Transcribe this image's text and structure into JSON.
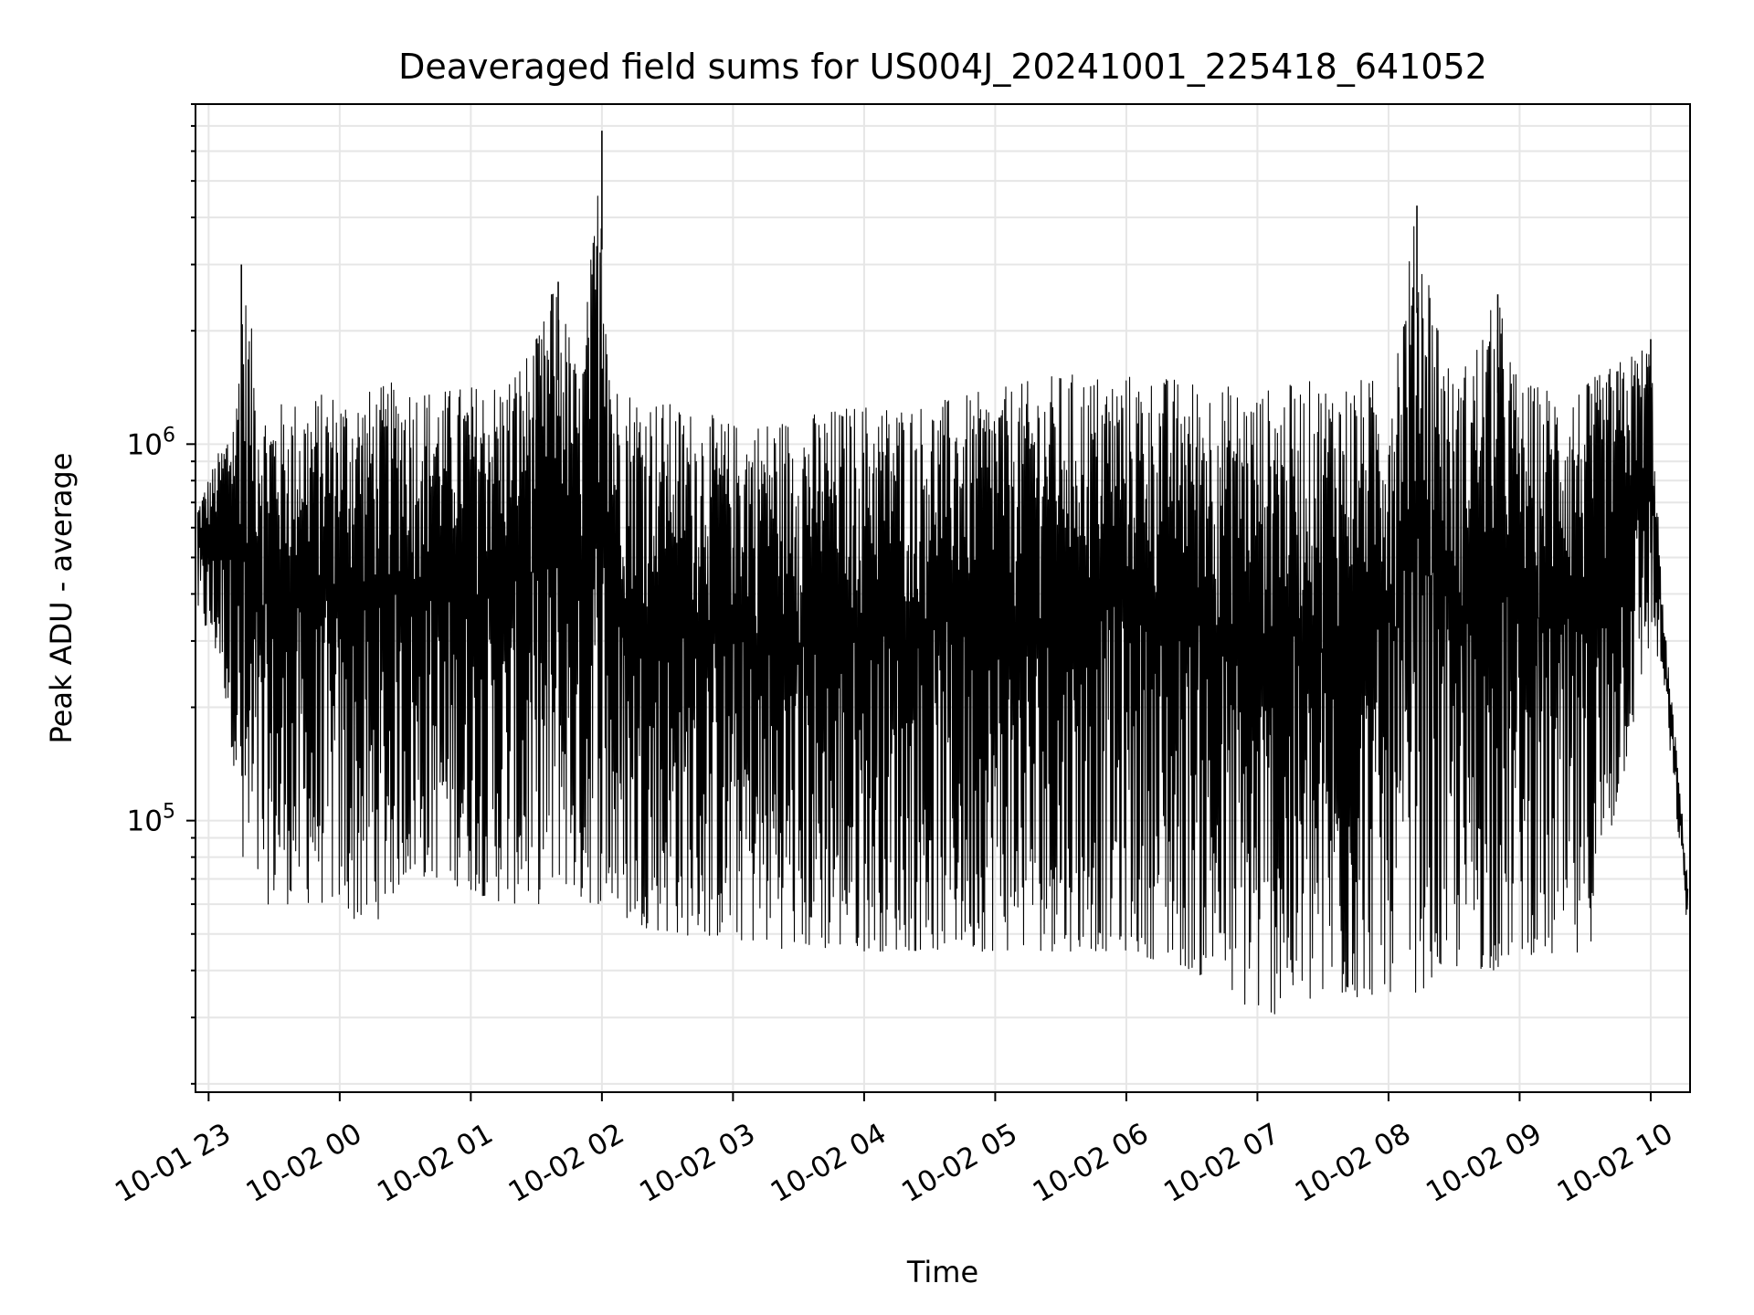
{
  "chart_data": {
    "type": "line",
    "title": "Deaveraged field sums for US004J_20241001_225418_641052",
    "xlabel": "Time",
    "ylabel": "Peak ADU - average",
    "yscale": "log",
    "xlim": [
      "2024-10-01 22:54",
      "2024-10-02 10:18"
    ],
    "ylim": [
      19000,
      8000000
    ],
    "grid": true,
    "x_ticks": [
      "2024-10-01 23:00",
      "2024-10-02 00:00",
      "2024-10-02 01:00",
      "2024-10-02 02:00",
      "2024-10-02 03:00",
      "2024-10-02 04:00",
      "2024-10-02 05:00",
      "2024-10-02 06:00",
      "2024-10-02 07:00",
      "2024-10-02 08:00",
      "2024-10-02 09:00",
      "2024-10-02 10:00"
    ],
    "x_tick_labels": [
      "10-01 23",
      "10-02 00",
      "10-02 01",
      "10-02 02",
      "10-02 03",
      "10-02 04",
      "10-02 05",
      "10-02 06",
      "10-02 07",
      "10-02 08",
      "10-02 09",
      "10-02 10"
    ],
    "y_major_ticks": [
      100000,
      1000000
    ],
    "y_tick_labels": [
      {
        "base": "10",
        "exp": "5"
      },
      {
        "base": "10",
        "exp": "6"
      }
    ],
    "line_color": "#000000",
    "series": [
      {
        "x": [
          "2024-10-01 22:55",
          "2024-10-01 23:06",
          "2024-10-01 23:13",
          "2024-10-01 23:15",
          "2024-10-01 23:25",
          "2024-10-01 23:34",
          "2024-10-01 23:58",
          "2024-10-02 00:13",
          "2024-10-02 00:30",
          "2024-10-02 00:45",
          "2024-10-02 01:00",
          "2024-10-02 01:15",
          "2024-10-02 01:30",
          "2024-10-02 01:37",
          "2024-10-02 01:40",
          "2024-10-02 01:50",
          "2024-10-02 02:00",
          "2024-10-02 02:05",
          "2024-10-02 02:30",
          "2024-10-02 03:00",
          "2024-10-02 03:30",
          "2024-10-02 04:00",
          "2024-10-02 04:30",
          "2024-10-02 05:00",
          "2024-10-02 05:30",
          "2024-10-02 06:00",
          "2024-10-02 06:30",
          "2024-10-02 07:00",
          "2024-10-02 07:30",
          "2024-10-02 08:00",
          "2024-10-02 08:13",
          "2024-10-02 08:30",
          "2024-10-02 08:50",
          "2024-10-02 09:00",
          "2024-10-02 09:30",
          "2024-10-02 10:00",
          "2024-10-02 10:05",
          "2024-10-02 10:12",
          "2024-10-02 10:17"
        ],
        "max": [
          700000,
          1000000,
          1400000,
          3000000,
          1300000,
          1300000,
          1400000,
          1400000,
          1500000,
          1400000,
          1450000,
          1500000,
          1900000,
          2500000,
          2700000,
          1500000,
          6800000,
          1500000,
          1300000,
          1150000,
          1200000,
          1300000,
          1300000,
          1400000,
          1550000,
          1550000,
          1500000,
          1400000,
          1500000,
          1500000,
          4300000,
          1450000,
          2500000,
          1450000,
          1450000,
          1900000,
          400000,
          150000,
          70000
        ],
        "min": [
          350000,
          250000,
          120000,
          55000,
          60000,
          60000,
          60000,
          50000,
          70000,
          70000,
          65000,
          60000,
          60000,
          60000,
          70000,
          60000,
          60000,
          55000,
          50000,
          48000,
          45000,
          45000,
          45000,
          45000,
          45000,
          45000,
          40000,
          30000,
          32000,
          35000,
          35000,
          40000,
          40000,
          45000,
          40000,
          300000,
          250000,
          100000,
          50000
        ]
      }
    ]
  }
}
